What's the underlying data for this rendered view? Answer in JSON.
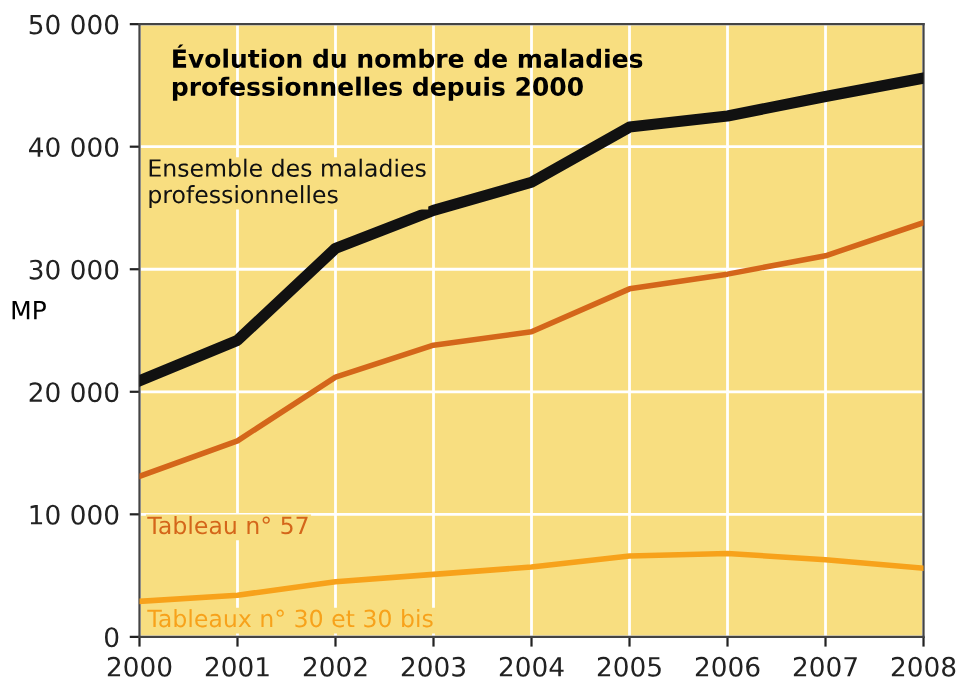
{
  "chart_data": {
    "type": "line",
    "title": "Évolution du nombre de maladies\nprofessionnelles depuis 2000",
    "ylabel": "MP",
    "x": [
      2000,
      2001,
      2002,
      2003,
      2004,
      2005,
      2006,
      2007,
      2008
    ],
    "series": [
      {
        "name": "Ensemble des maladies\nprofessionnelles",
        "color": "#111111",
        "values": [
          20900,
          24200,
          31700,
          34800,
          37100,
          41600,
          42500,
          44100,
          45600
        ]
      },
      {
        "name": "Tableau n° 57",
        "color": "#d4661a",
        "values": [
          13100,
          16000,
          21200,
          23800,
          24900,
          28400,
          29600,
          31100,
          33800
        ]
      },
      {
        "name": "Tableaux n° 30 et 30 bis",
        "color": "#f7a21b",
        "values": [
          2900,
          3400,
          4500,
          5100,
          5700,
          6600,
          6800,
          6300,
          5600
        ]
      }
    ],
    "xlim": [
      2000,
      2008
    ],
    "xticks": [
      2000,
      2001,
      2002,
      2003,
      2004,
      2005,
      2006,
      2007,
      2008
    ],
    "ylim": [
      0,
      50000
    ],
    "yticks": [
      {
        "value": 0,
        "label": "0"
      },
      {
        "value": 10000,
        "label": "10 000"
      },
      {
        "value": 20000,
        "label": "20 000"
      },
      {
        "value": 30000,
        "label": "30 000"
      },
      {
        "value": 40000,
        "label": "40 000"
      },
      {
        "value": 50000,
        "label": "50 000"
      }
    ],
    "grid": true,
    "legend": false,
    "marker": "none",
    "line_style": "solid"
  }
}
